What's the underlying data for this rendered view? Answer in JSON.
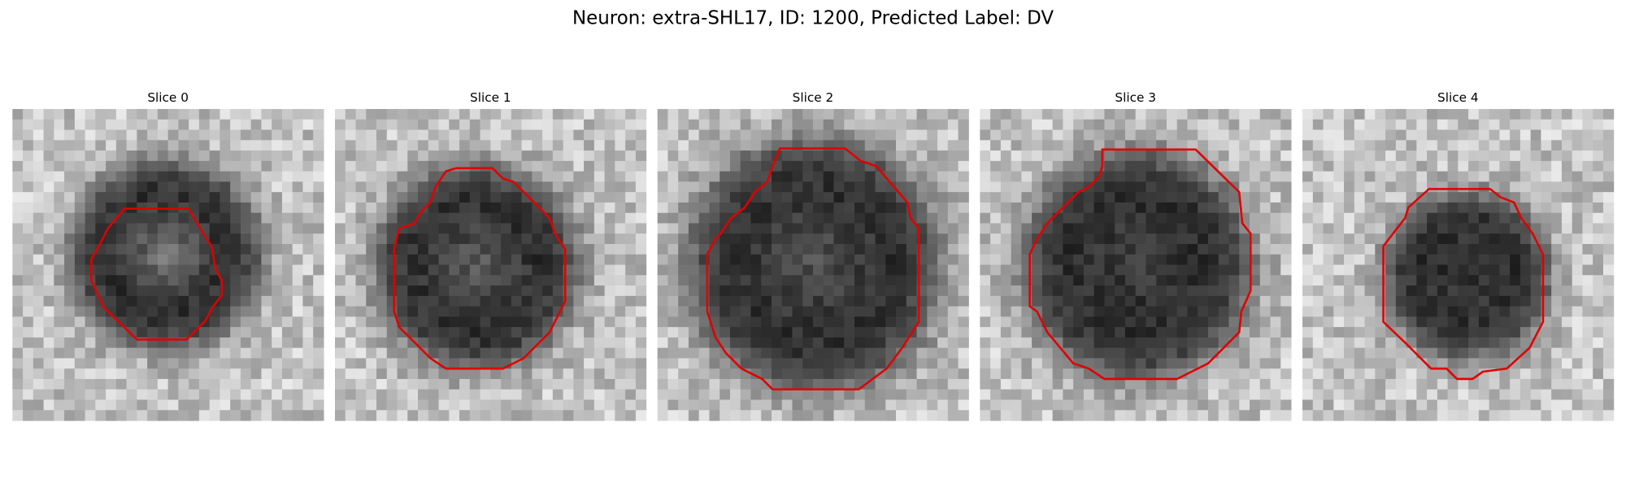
{
  "title": "Neuron: extra-SHL17, ID: 1200, Predicted Label: DV",
  "panels": [
    {
      "title": "Slice 0"
    },
    {
      "title": "Slice 1"
    },
    {
      "title": "Slice 2"
    },
    {
      "title": "Slice 3"
    },
    {
      "title": "Slice 4"
    }
  ]
}
